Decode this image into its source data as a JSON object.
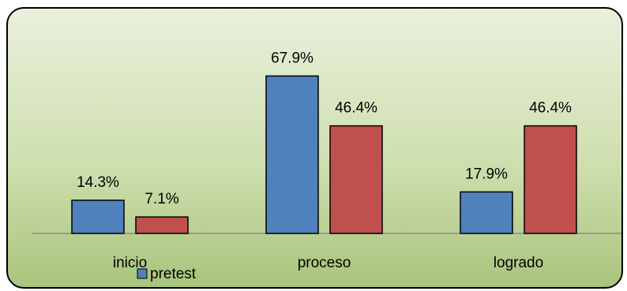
{
  "chart_data": {
    "type": "bar",
    "categories": [
      "inicio",
      "proceso",
      "logrado"
    ],
    "series": [
      {
        "name": "pretest",
        "values": [
          14.3,
          67.9,
          17.9
        ],
        "labels": [
          "14.3%",
          "67.9%",
          "17.9%"
        ],
        "color": "#4f81bd"
      },
      {
        "values": [
          7.1,
          46.4,
          46.4
        ],
        "labels": [
          "7.1%",
          "46.4%",
          "46.4%"
        ],
        "color": "#c0504d"
      }
    ],
    "ylim": [
      0,
      75
    ],
    "grid": false,
    "legend_position": "bottom",
    "colors": {
      "background_top": "#e9f0dc",
      "background_bottom": "#a9c47c",
      "axis": "#8a8a8a"
    }
  }
}
